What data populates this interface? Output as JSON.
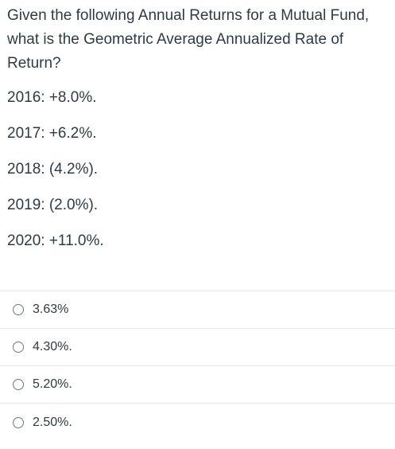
{
  "question": {
    "lines": [
      "Given the following Annual Returns for a Mutual Fund,",
      "what is the Geometric Average Annualized Rate of",
      "Return?"
    ],
    "returns": [
      "2016: +8.0%.",
      "2017: +6.2%.",
      "2018: (4.2%).",
      "2019: (2.0%).",
      "2020: +11.0%."
    ]
  },
  "answers": [
    "3.63%",
    "4.30%.",
    "5.20%.",
    "2.50%."
  ]
}
